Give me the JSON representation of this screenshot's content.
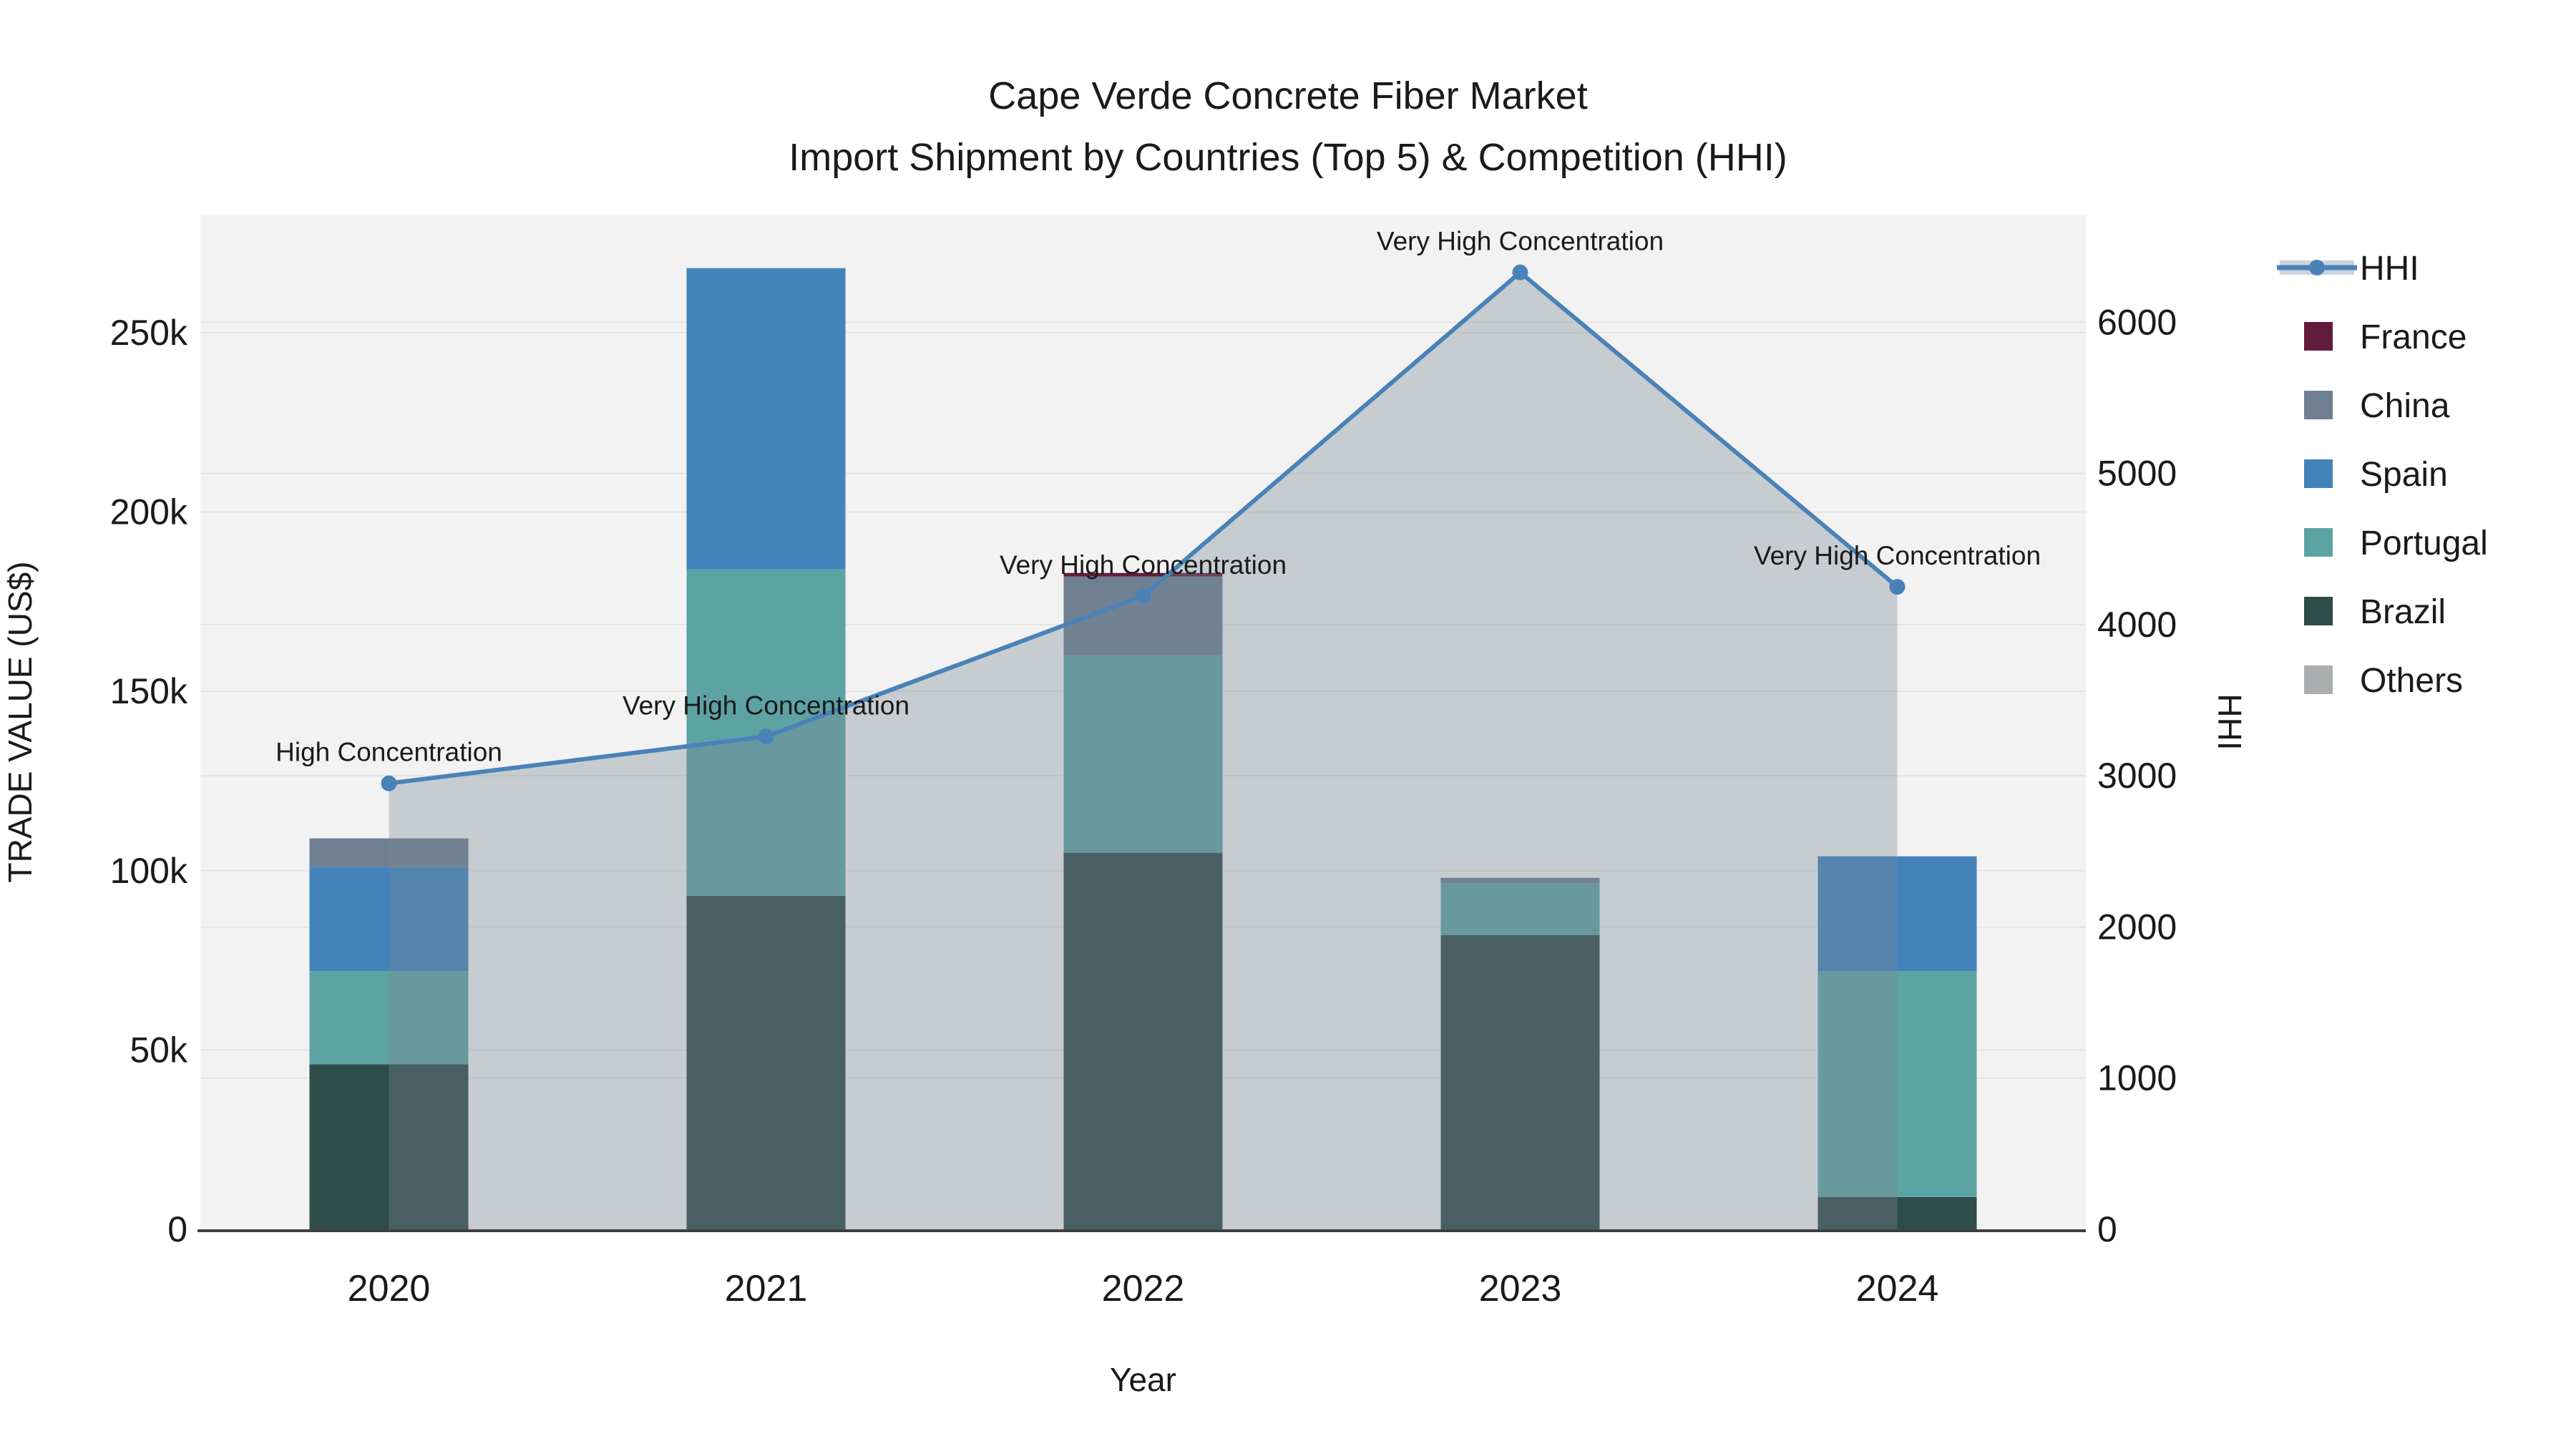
{
  "title": {
    "line1": "Cape Verde Concrete Fiber Market",
    "line2": "Import Shipment by Countries (Top 5) & Competition (HHI)"
  },
  "chart_data": {
    "type": "combo-stacked-bar-line",
    "categories": [
      "2020",
      "2021",
      "2022",
      "2023",
      "2024"
    ],
    "bar_series": [
      {
        "name": "Brazil",
        "color": "#2e4c49",
        "values": [
          46000,
          93000,
          105000,
          82000,
          9000
        ]
      },
      {
        "name": "Portugal",
        "color": "#5ea3a3",
        "values": [
          26000,
          91000,
          55000,
          14500,
          63000
        ]
      },
      {
        "name": "Spain",
        "color": "#4383ba",
        "values": [
          29000,
          84000,
          0,
          0,
          32000
        ]
      },
      {
        "name": "China",
        "color": "#6e8092",
        "values": [
          8000,
          0,
          22000,
          1500,
          0
        ]
      },
      {
        "name": "France",
        "color": "#631b3d",
        "values": [
          0,
          0,
          1000,
          0,
          0
        ]
      },
      {
        "name": "Others",
        "color": "#abaeae",
        "values": [
          0,
          0,
          0,
          0,
          0
        ]
      }
    ],
    "line_series": {
      "name": "HHI",
      "color": "#4a82b8",
      "area_fill": "rgba(120,136,150,0.35)",
      "values": [
        2950,
        3260,
        4190,
        6330,
        4250
      ]
    },
    "annotations": [
      {
        "category": "2020",
        "text": "High Concentration"
      },
      {
        "category": "2021",
        "text": "Very High Concentration"
      },
      {
        "category": "2022",
        "text": "Very High Concentration"
      },
      {
        "category": "2023",
        "text": "Very High Concentration"
      },
      {
        "category": "2024",
        "text": "Very High Concentration"
      }
    ],
    "x_axis": {
      "title": "Year"
    },
    "y_left": {
      "title": "TRADE VALUE (US$)",
      "range": [
        0,
        282700
      ],
      "ticks": [
        {
          "v": 0,
          "label": "0"
        },
        {
          "v": 50000,
          "label": "50k"
        },
        {
          "v": 100000,
          "label": "100k"
        },
        {
          "v": 150000,
          "label": "150k"
        },
        {
          "v": 200000,
          "label": "200k"
        },
        {
          "v": 250000,
          "label": "250k"
        }
      ]
    },
    "y_right": {
      "title": "HHI",
      "range": [
        0,
        6707
      ],
      "ticks": [
        {
          "v": 0,
          "label": "0"
        },
        {
          "v": 1000,
          "label": "1000"
        },
        {
          "v": 2000,
          "label": "2000"
        },
        {
          "v": 3000,
          "label": "3000"
        },
        {
          "v": 4000,
          "label": "4000"
        },
        {
          "v": 5000,
          "label": "5000"
        },
        {
          "v": 6000,
          "label": "6000"
        }
      ]
    },
    "legend": [
      {
        "label": "HHI",
        "type": "line",
        "color": "#4a82b8"
      },
      {
        "label": "France",
        "type": "swatch",
        "color": "#631b3d"
      },
      {
        "label": "China",
        "type": "swatch",
        "color": "#6e8092"
      },
      {
        "label": "Spain",
        "type": "swatch",
        "color": "#4383ba"
      },
      {
        "label": "Portugal",
        "type": "swatch",
        "color": "#5ea3a3"
      },
      {
        "label": "Brazil",
        "type": "swatch",
        "color": "#2e4c49"
      },
      {
        "label": "Others",
        "type": "swatch",
        "color": "#abaeae"
      }
    ],
    "colors": {
      "plot_bg": "#f2f2f2",
      "grid": "#e4e4e4",
      "axis_line": "#3f3f3f",
      "title_text": "#262626",
      "hhi_band": "#ccd3db"
    }
  }
}
